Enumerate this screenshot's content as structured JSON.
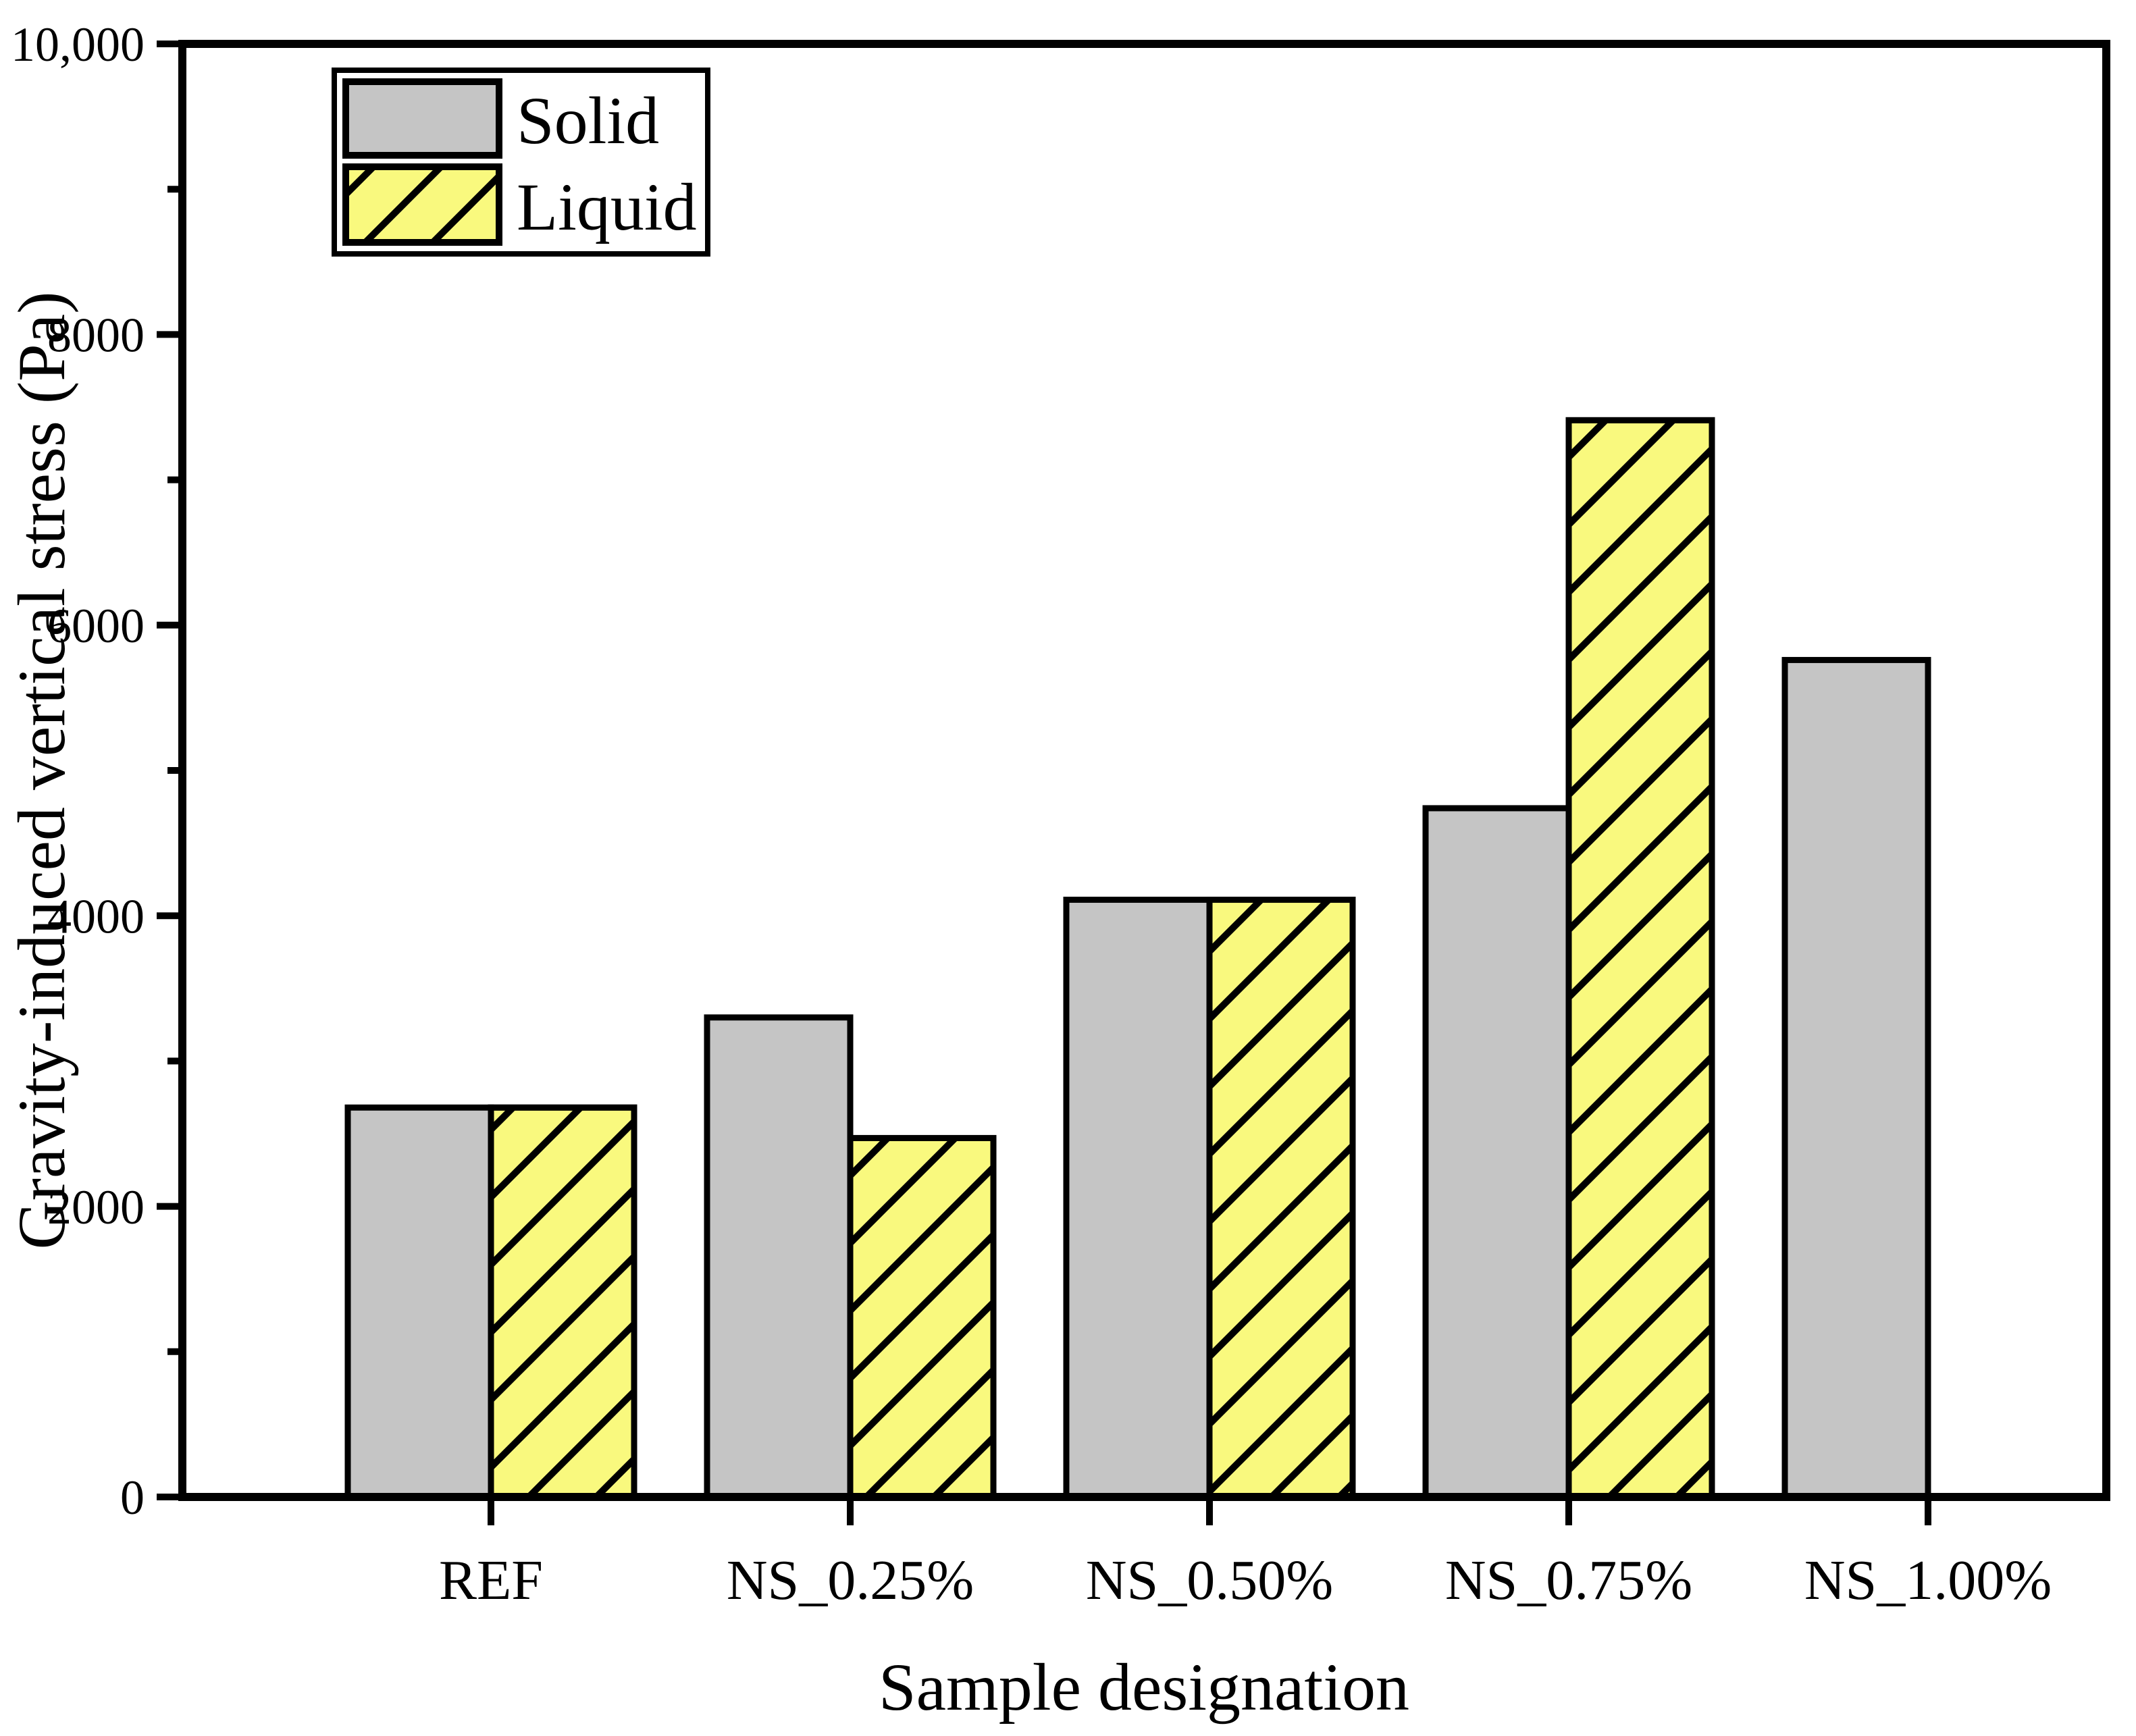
{
  "chart_data": {
    "type": "bar",
    "title": "",
    "xlabel": "Sample designation",
    "ylabel": "Gravity-induced vertical stress (Pa)",
    "categories": [
      "REF",
      "NS_0.25%",
      "NS_0.50%",
      "NS_0.75%",
      "NS_1.00%"
    ],
    "series": [
      {
        "name": "Solid",
        "color": "#c5c5c5",
        "hatch": "none",
        "values": [
          2680,
          3300,
          4110,
          4740,
          5760
        ]
      },
      {
        "name": "Liquid",
        "color": "#f9f97e",
        "hatch": "diagonal-forward",
        "values": [
          2680,
          2470,
          4110,
          7410,
          null
        ]
      }
    ],
    "ylim": [
      0,
      10000
    ],
    "y_major_step": 2000,
    "y_minor_step": 1000,
    "y_tick_labels": [
      "0",
      "2000",
      "4000",
      "6000",
      "8000",
      "10,000"
    ],
    "x_minor_ticks": false,
    "grid": false,
    "legend_position": "top-left",
    "bar_edge_color": "#000000",
    "axis_color": "#000000",
    "background_color": "#ffffff"
  }
}
